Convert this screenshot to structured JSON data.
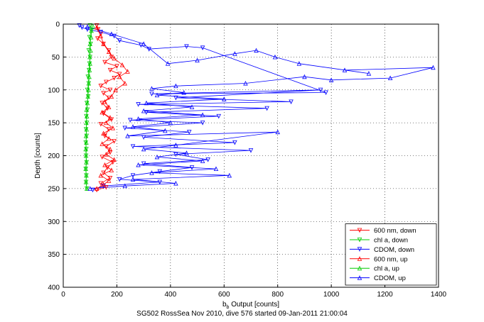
{
  "chart_data": {
    "type": "scatter",
    "xlabel_main": "b",
    "xlabel_sub": "b",
    "xlabel_rest": " Output [counts]",
    "ylabel": "Depth [counts]",
    "xlim": [
      0,
      1400
    ],
    "ylim": [
      0,
      400
    ],
    "y_reversed": true,
    "grid": true,
    "legend_position": "bottom-right",
    "xticks": [
      0,
      200,
      400,
      600,
      800,
      1000,
      1200,
      1400
    ],
    "yticks": [
      0,
      50,
      100,
      150,
      200,
      250,
      300,
      350,
      400
    ],
    "series": [
      {
        "name": "600 nm, down",
        "color": "#ff0000",
        "marker": "triangle-down",
        "line": true,
        "points": [
          [
            125,
            2
          ],
          [
            130,
            8
          ],
          [
            140,
            15
          ],
          [
            128,
            22
          ],
          [
            150,
            30
          ],
          [
            170,
            40
          ],
          [
            180,
            50
          ],
          [
            155,
            58
          ],
          [
            200,
            64
          ],
          [
            175,
            70
          ],
          [
            210,
            76
          ],
          [
            190,
            82
          ],
          [
            160,
            88
          ],
          [
            140,
            94
          ],
          [
            175,
            100
          ],
          [
            150,
            105
          ],
          [
            170,
            112
          ],
          [
            145,
            120
          ],
          [
            165,
            128
          ],
          [
            150,
            136
          ],
          [
            180,
            145
          ],
          [
            140,
            152
          ],
          [
            170,
            160
          ],
          [
            155,
            170
          ],
          [
            190,
            178
          ],
          [
            160,
            186
          ],
          [
            175,
            195
          ],
          [
            145,
            202
          ],
          [
            185,
            210
          ],
          [
            165,
            218
          ],
          [
            150,
            226
          ],
          [
            175,
            234
          ],
          [
            140,
            242
          ],
          [
            160,
            248
          ],
          [
            125,
            252
          ]
        ]
      },
      {
        "name": "chl a, down",
        "color": "#00cc00",
        "marker": "triangle-down",
        "line": true,
        "points": [
          [
            100,
            2
          ],
          [
            105,
            10
          ],
          [
            98,
            20
          ],
          [
            102,
            30
          ],
          [
            95,
            40
          ],
          [
            100,
            50
          ],
          [
            98,
            60
          ],
          [
            96,
            70
          ],
          [
            92,
            80
          ],
          [
            95,
            90
          ],
          [
            90,
            100
          ],
          [
            93,
            110
          ],
          [
            88,
            120
          ],
          [
            90,
            130
          ],
          [
            86,
            140
          ],
          [
            88,
            150
          ],
          [
            85,
            160
          ],
          [
            87,
            170
          ],
          [
            84,
            180
          ],
          [
            86,
            190
          ],
          [
            85,
            200
          ],
          [
            87,
            210
          ],
          [
            84,
            220
          ],
          [
            86,
            230
          ],
          [
            85,
            240
          ],
          [
            88,
            250
          ]
        ]
      },
      {
        "name": "CDOM, down",
        "color": "#0000ff",
        "marker": "triangle-down",
        "line": true,
        "points": [
          [
            60,
            2
          ],
          [
            70,
            5
          ],
          [
            90,
            8
          ],
          [
            140,
            12
          ],
          [
            190,
            18
          ],
          [
            210,
            25
          ],
          [
            290,
            32
          ],
          [
            320,
            38
          ],
          [
            460,
            34
          ],
          [
            520,
            36
          ],
          [
            980,
            104
          ],
          [
            330,
            106
          ],
          [
            960,
            100
          ],
          [
            420,
            112
          ],
          [
            850,
            118
          ],
          [
            280,
            122
          ],
          [
            760,
            128
          ],
          [
            310,
            134
          ],
          [
            580,
            140
          ],
          [
            250,
            146
          ],
          [
            520,
            150
          ],
          [
            230,
            158
          ],
          [
            470,
            164
          ],
          [
            300,
            172
          ],
          [
            640,
            180
          ],
          [
            260,
            186
          ],
          [
            700,
            192
          ],
          [
            420,
            198
          ],
          [
            540,
            206
          ],
          [
            300,
            212
          ],
          [
            480,
            218
          ],
          [
            360,
            224
          ],
          [
            260,
            230
          ],
          [
            210,
            236
          ],
          [
            360,
            240
          ],
          [
            150,
            246
          ],
          [
            110,
            252
          ]
        ]
      },
      {
        "name": "600 nm, up",
        "color": "#ff0000",
        "marker": "triangle-up",
        "line": true,
        "points": [
          [
            125,
            250
          ],
          [
            150,
            244
          ],
          [
            170,
            238
          ],
          [
            140,
            230
          ],
          [
            180,
            222
          ],
          [
            155,
            214
          ],
          [
            190,
            206
          ],
          [
            160,
            198
          ],
          [
            175,
            190
          ],
          [
            145,
            182
          ],
          [
            170,
            174
          ],
          [
            150,
            166
          ],
          [
            185,
            158
          ],
          [
            160,
            150
          ],
          [
            175,
            142
          ],
          [
            145,
            134
          ],
          [
            170,
            126
          ],
          [
            155,
            118
          ],
          [
            180,
            110
          ],
          [
            195,
            100
          ],
          [
            230,
            90
          ],
          [
            210,
            80
          ],
          [
            240,
            72
          ],
          [
            220,
            62
          ],
          [
            190,
            52
          ],
          [
            170,
            42
          ],
          [
            150,
            30
          ],
          [
            140,
            18
          ],
          [
            125,
            5
          ]
        ]
      },
      {
        "name": "chl a, up",
        "color": "#00cc00",
        "marker": "triangle-up",
        "line": true,
        "points": [
          [
            88,
            250
          ],
          [
            85,
            240
          ],
          [
            86,
            230
          ],
          [
            84,
            220
          ],
          [
            86,
            210
          ],
          [
            85,
            200
          ],
          [
            84,
            190
          ],
          [
            86,
            180
          ],
          [
            85,
            170
          ],
          [
            87,
            160
          ],
          [
            86,
            150
          ],
          [
            88,
            140
          ],
          [
            87,
            130
          ],
          [
            90,
            120
          ],
          [
            92,
            110
          ],
          [
            94,
            100
          ],
          [
            95,
            90
          ],
          [
            97,
            80
          ],
          [
            98,
            70
          ],
          [
            100,
            60
          ],
          [
            99,
            50
          ],
          [
            102,
            40
          ],
          [
            100,
            30
          ],
          [
            104,
            20
          ],
          [
            105,
            10
          ],
          [
            110,
            3
          ]
        ]
      },
      {
        "name": "CDOM, up",
        "color": "#0000ff",
        "marker": "triangle-up",
        "line": true,
        "points": [
          [
            100,
            250
          ],
          [
            230,
            246
          ],
          [
            420,
            242
          ],
          [
            260,
            236
          ],
          [
            620,
            230
          ],
          [
            330,
            226
          ],
          [
            570,
            220
          ],
          [
            280,
            214
          ],
          [
            520,
            208
          ],
          [
            350,
            202
          ],
          [
            460,
            196
          ],
          [
            300,
            190
          ],
          [
            420,
            184
          ],
          [
            800,
            164
          ],
          [
            240,
            170
          ],
          [
            380,
            162
          ],
          [
            260,
            156
          ],
          [
            400,
            150
          ],
          [
            280,
            144
          ],
          [
            520,
            138
          ],
          [
            300,
            132
          ],
          [
            480,
            126
          ],
          [
            310,
            120
          ],
          [
            600,
            114
          ],
          [
            350,
            108
          ],
          [
            450,
            104
          ],
          [
            330,
            98
          ],
          [
            420,
            94
          ],
          [
            680,
            90
          ],
          [
            900,
            80
          ],
          [
            1000,
            85
          ],
          [
            1220,
            82
          ],
          [
            1380,
            66
          ],
          [
            1050,
            70
          ],
          [
            1140,
            75
          ],
          [
            880,
            60
          ],
          [
            790,
            50
          ],
          [
            720,
            40
          ],
          [
            640,
            45
          ],
          [
            500,
            55
          ],
          [
            390,
            60
          ],
          [
            300,
            30
          ],
          [
            180,
            15
          ],
          [
            90,
            4
          ]
        ]
      }
    ]
  },
  "caption": "SG502 RossSea Nov 2010, dive 576 started 09-Jan-2011 21:00:04"
}
